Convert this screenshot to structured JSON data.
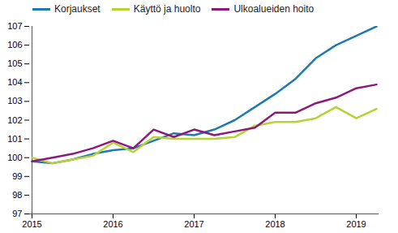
{
  "chart_data": {
    "type": "line",
    "categories": [
      "2015",
      null,
      null,
      null,
      "2016",
      null,
      null,
      null,
      "2017",
      null,
      null,
      null,
      "2018",
      null,
      null,
      null,
      "2019",
      null
    ],
    "series": [
      {
        "name": "Korjaukset",
        "color": "#1f7ab3",
        "values": [
          99.8,
          99.7,
          99.9,
          100.2,
          100.4,
          100.5,
          100.9,
          101.3,
          101.2,
          101.5,
          102.0,
          102.7,
          103.4,
          104.2,
          105.3,
          106.0,
          106.5,
          107.0
        ]
      },
      {
        "name": "Käyttö ja huolto",
        "color": "#b5d334",
        "values": [
          100.0,
          99.7,
          99.9,
          100.1,
          100.8,
          100.3,
          101.1,
          101.0,
          101.0,
          101.0,
          101.1,
          101.7,
          101.9,
          101.9,
          102.1,
          102.7,
          102.1,
          102.6
        ]
      },
      {
        "name": "Ulkoalueiden hoito",
        "color": "#8c1a7a",
        "values": [
          99.8,
          100.0,
          100.2,
          100.5,
          100.9,
          100.5,
          101.5,
          101.1,
          101.5,
          101.2,
          101.4,
          101.6,
          102.4,
          102.4,
          102.9,
          103.2,
          103.7,
          103.9
        ]
      }
    ],
    "ylim": [
      97,
      107
    ],
    "yticks": [
      97,
      98,
      99,
      100,
      101,
      102,
      103,
      104,
      105,
      106,
      107
    ],
    "grid": false,
    "legend": "top-left"
  }
}
